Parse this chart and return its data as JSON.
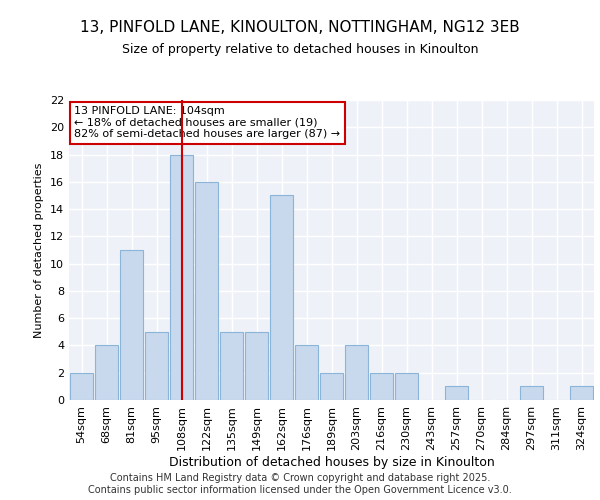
{
  "title": "13, PINFOLD LANE, KINOULTON, NOTTINGHAM, NG12 3EB",
  "subtitle": "Size of property relative to detached houses in Kinoulton",
  "xlabel": "Distribution of detached houses by size in Kinoulton",
  "ylabel": "Number of detached properties",
  "categories": [
    "54sqm",
    "68sqm",
    "81sqm",
    "95sqm",
    "108sqm",
    "122sqm",
    "135sqm",
    "149sqm",
    "162sqm",
    "176sqm",
    "189sqm",
    "203sqm",
    "216sqm",
    "230sqm",
    "243sqm",
    "257sqm",
    "270sqm",
    "284sqm",
    "297sqm",
    "311sqm",
    "324sqm"
  ],
  "values": [
    2,
    4,
    11,
    5,
    18,
    16,
    5,
    5,
    15,
    4,
    2,
    4,
    2,
    2,
    0,
    1,
    0,
    0,
    1,
    0,
    1
  ],
  "bar_color": "#c8d9ee",
  "bar_edgecolor": "#8ab4d8",
  "vline_x_index": 4,
  "vline_color": "#cc0000",
  "annotation_text": "13 PINFOLD LANE: 104sqm\n← 18% of detached houses are smaller (19)\n82% of semi-detached houses are larger (87) →",
  "annotation_box_facecolor": "#ffffff",
  "annotation_box_edgecolor": "#cc0000",
  "ylim": [
    0,
    22
  ],
  "yticks": [
    0,
    2,
    4,
    6,
    8,
    10,
    12,
    14,
    16,
    18,
    20,
    22
  ],
  "background_color": "#ffffff",
  "plot_bg_color": "#eef2f8",
  "grid_color": "#ffffff",
  "footer": "Contains HM Land Registry data © Crown copyright and database right 2025.\nContains public sector information licensed under the Open Government Licence v3.0.",
  "title_fontsize": 11,
  "subtitle_fontsize": 9,
  "xlabel_fontsize": 9,
  "ylabel_fontsize": 8,
  "tick_fontsize": 8,
  "footer_fontsize": 7,
  "ann_fontsize": 8
}
